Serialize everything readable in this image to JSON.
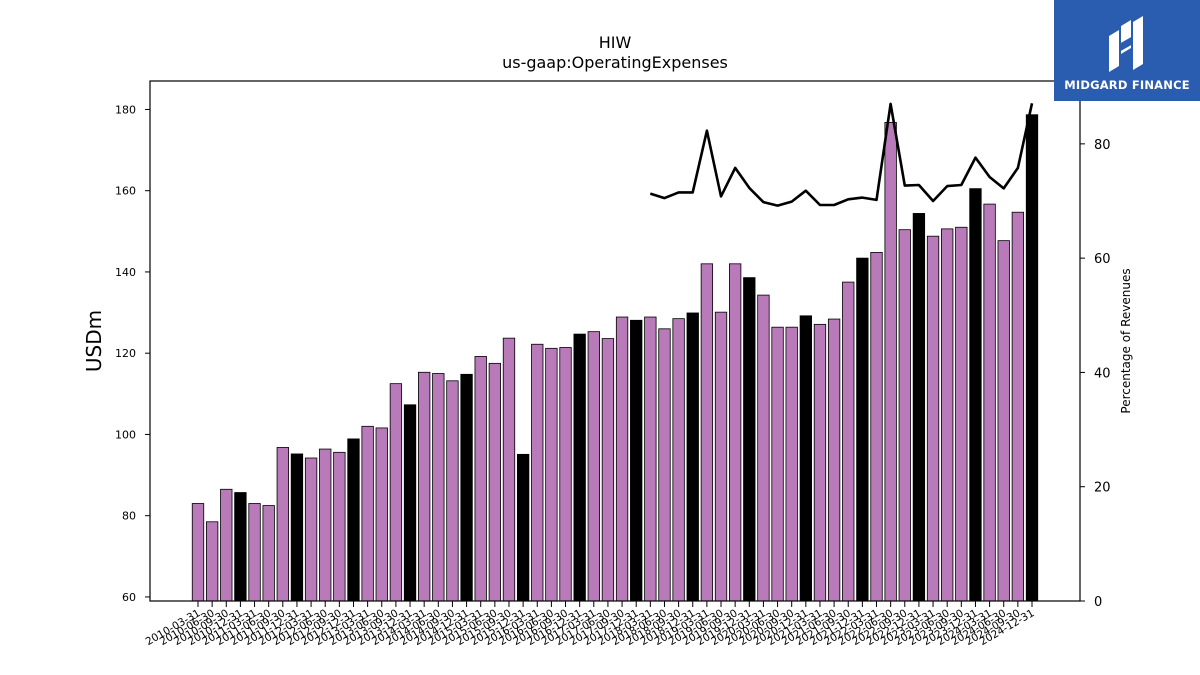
{
  "brand": {
    "name": "MIDGARD FINANCE",
    "color": "#2a5db0",
    "icon": "midgard-logo-icon"
  },
  "chart_data": {
    "type": "bar",
    "title": "HIW",
    "subtitle": "us-gaap:OperatingExpenses",
    "ylabel": "USDm",
    "y2label": "Percentage of Revenues",
    "ylim": [
      59,
      187
    ],
    "y2lim": [
      0,
      91
    ],
    "yticks": [
      60,
      80,
      100,
      120,
      140,
      160,
      180
    ],
    "y2ticks": [
      0,
      20,
      40,
      60,
      80
    ],
    "grid": false,
    "colors": {
      "bar": "#b87ab8",
      "bar_q4": "#000000",
      "line": "#000000"
    },
    "categories": [
      "2010-03-31",
      "2010-06-30",
      "2010-09-30",
      "2010-12-31",
      "2011-03-31",
      "2011-06-30",
      "2011-09-30",
      "2011-12-31",
      "2012-03-31",
      "2012-06-30",
      "2012-09-30",
      "2012-12-31",
      "2013-03-31",
      "2013-06-30",
      "2013-09-30",
      "2013-12-31",
      "2014-03-31",
      "2014-06-30",
      "2014-09-30",
      "2014-12-31",
      "2015-03-31",
      "2015-06-30",
      "2015-09-30",
      "2015-12-31",
      "2016-03-31",
      "2016-06-30",
      "2016-09-30",
      "2016-12-31",
      "2017-03-31",
      "2017-06-30",
      "2017-09-30",
      "2017-12-31",
      "2018-03-31",
      "2018-06-30",
      "2018-09-30",
      "2018-12-31",
      "2019-03-31",
      "2019-06-30",
      "2019-09-30",
      "2019-12-31",
      "2020-03-31",
      "2020-06-30",
      "2020-09-30",
      "2020-12-31",
      "2021-03-31",
      "2021-06-30",
      "2021-09-30",
      "2021-12-31",
      "2022-03-31",
      "2022-06-30",
      "2022-09-30",
      "2022-12-31",
      "2023-03-31",
      "2023-06-30",
      "2023-09-30",
      "2023-12-31",
      "2024-03-31",
      "2024-06-30",
      "2024-09-30",
      "2024-12-31"
    ],
    "series": [
      {
        "type": "bar",
        "axis": "left",
        "values": [
          83,
          78.5,
          86.5,
          85.7,
          83,
          82.5,
          96.8,
          95.2,
          94.2,
          96.4,
          95.6,
          98.9,
          102,
          101.6,
          112.5,
          107.3,
          115.3,
          115,
          113.2,
          114.8,
          119.2,
          117.5,
          123.7,
          95.1,
          122.2,
          121.2,
          121.4,
          124.7,
          125.3,
          123.6,
          128.9,
          128.1,
          128.9,
          126,
          128.5,
          129.9,
          142,
          130.1,
          142,
          138.6,
          134.3,
          126.4,
          126.4,
          129.2,
          127.1,
          128.4,
          137.5,
          143.4,
          144.8,
          176.8,
          150.4,
          154.4,
          148.8,
          150.6,
          151,
          160.5,
          156.7,
          147.7,
          154.7,
          178.7
        ]
      },
      {
        "type": "line",
        "axis": "right",
        "values": [
          null,
          null,
          null,
          null,
          null,
          null,
          null,
          null,
          null,
          null,
          null,
          null,
          null,
          null,
          null,
          null,
          null,
          null,
          null,
          null,
          null,
          null,
          null,
          null,
          null,
          null,
          null,
          null,
          null,
          null,
          null,
          null,
          71.3,
          70.5,
          71.5,
          71.5,
          82.3,
          70.8,
          75.8,
          72.3,
          69.8,
          69.2,
          69.9,
          71.8,
          69.3,
          69.3,
          70.3,
          70.6,
          70.2,
          87,
          72.7,
          72.8,
          70,
          72.6,
          72.8,
          77.6,
          74.2,
          72.2,
          75.8,
          87.1
        ]
      }
    ]
  }
}
